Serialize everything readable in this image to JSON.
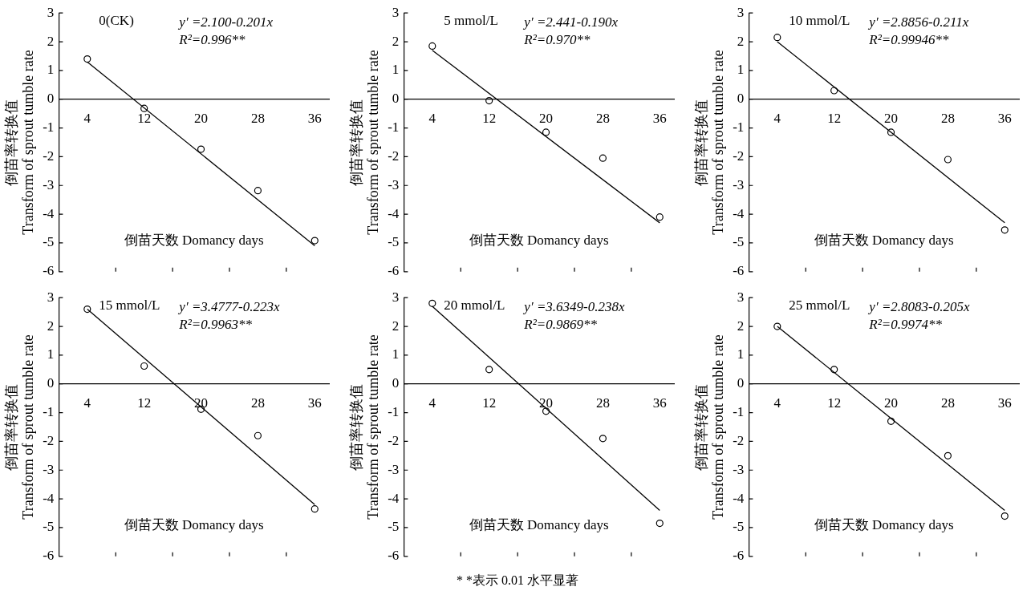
{
  "chart_data": [
    {
      "type": "scatter",
      "xlabel": "倒苗天数 Domancy days",
      "ylabel": "倒苗率转换值\nTransform of sprout tumble rate",
      "xlim": [
        0,
        38
      ],
      "ylim": [
        -6,
        3
      ],
      "xticks": [
        4,
        {
          "value": 8,
          "label": null
        },
        12,
        {
          "value": 16,
          "label": null
        },
        20,
        {
          "value": 24,
          "label": null
        },
        28,
        {
          "value": 32,
          "label": null
        },
        36
      ],
      "yticks": [
        -6,
        -5,
        -4,
        -3,
        -2,
        -1,
        0,
        1,
        2,
        3
      ],
      "grid": false,
      "legend": false,
      "marker": "circle",
      "annotations": [
        "0(CK)",
        "y′ =2.100-0.201x",
        "R²=0.996**"
      ],
      "series": [
        {
          "color": "#000000",
          "x": [
            4,
            12,
            20,
            28,
            36
          ],
          "values": [
            1.4,
            -0.32,
            -1.74,
            -3.18,
            -4.92
          ]
        },
        {
          "type": "line",
          "color": "#000000",
          "marker": "none",
          "x": [
            4,
            36
          ],
          "values": [
            1.3,
            -5.1
          ]
        }
      ]
    },
    {
      "type": "scatter",
      "xlabel": "倒苗天数 Domancy days",
      "ylabel": "倒苗率转换值\nTransform of sprout tumble rate",
      "xlim": [
        0,
        38
      ],
      "ylim": [
        -6,
        3
      ],
      "xticks": [
        4,
        {
          "value": 8,
          "label": null
        },
        12,
        {
          "value": 16,
          "label": null
        },
        20,
        {
          "value": 24,
          "label": null
        },
        28,
        {
          "value": 32,
          "label": null
        },
        36
      ],
      "yticks": [
        -6,
        -5,
        -4,
        -3,
        -2,
        -1,
        0,
        1,
        2,
        3
      ],
      "grid": false,
      "legend": false,
      "marker": "circle",
      "annotations": [
        "5 mmol/L",
        "y′ =2.441-0.190x",
        "R²=0.970**"
      ],
      "series": [
        {
          "color": "#000000",
          "x": [
            4,
            12,
            20,
            28,
            36
          ],
          "values": [
            1.85,
            -0.05,
            -1.15,
            -2.05,
            -4.1
          ]
        },
        {
          "type": "line",
          "color": "#000000",
          "marker": "none",
          "x": [
            4,
            36
          ],
          "values": [
            1.7,
            -4.3
          ]
        }
      ]
    },
    {
      "type": "scatter",
      "xlabel": "倒苗天数 Domancy days",
      "ylabel": "倒苗率转换值\nTransform of sprout tumble rate",
      "xlim": [
        0,
        38
      ],
      "ylim": [
        -6,
        3
      ],
      "xticks": [
        4,
        {
          "value": 8,
          "label": null
        },
        12,
        {
          "value": 16,
          "label": null
        },
        20,
        {
          "value": 24,
          "label": null
        },
        28,
        {
          "value": 32,
          "label": null
        },
        36
      ],
      "yticks": [
        -6,
        -5,
        -4,
        -3,
        -2,
        -1,
        0,
        1,
        2,
        3
      ],
      "grid": false,
      "legend": false,
      "marker": "circle",
      "annotations": [
        "10 mmol/L",
        "y′ =2.8856-0.211x",
        "R²=0.99946**"
      ],
      "series": [
        {
          "color": "#000000",
          "x": [
            4,
            12,
            20,
            28,
            36
          ],
          "values": [
            2.15,
            0.3,
            -1.15,
            -2.1,
            -4.55
          ]
        },
        {
          "type": "line",
          "color": "#000000",
          "marker": "none",
          "x": [
            4,
            36
          ],
          "values": [
            2.0,
            -4.3
          ]
        }
      ]
    },
    {
      "type": "scatter",
      "xlabel": "倒苗天数 Domancy days",
      "ylabel": "倒苗率转换值\nTransform of sprout tumble rate",
      "xlim": [
        0,
        38
      ],
      "ylim": [
        -6,
        3
      ],
      "xticks": [
        4,
        {
          "value": 8,
          "label": null
        },
        12,
        {
          "value": 16,
          "label": null
        },
        20,
        {
          "value": 24,
          "label": null
        },
        28,
        {
          "value": 32,
          "label": null
        },
        36
      ],
      "yticks": [
        -6,
        -5,
        -4,
        -3,
        -2,
        -1,
        0,
        1,
        2,
        3
      ],
      "grid": false,
      "legend": false,
      "marker": "circle",
      "annotations": [
        "15 mmol/L",
        "y′ =3.4777-0.223x",
        "R²=0.9963**"
      ],
      "series": [
        {
          "color": "#000000",
          "x": [
            4,
            12,
            20,
            28,
            36
          ],
          "values": [
            2.6,
            0.62,
            -0.88,
            -1.8,
            -4.35
          ]
        },
        {
          "type": "line",
          "color": "#000000",
          "marker": "none",
          "x": [
            4,
            36
          ],
          "values": [
            2.6,
            -4.2
          ]
        }
      ]
    },
    {
      "type": "scatter",
      "xlabel": "倒苗天数 Domancy days",
      "ylabel": "倒苗率转换值\nTransform of sprout tumble rate",
      "xlim": [
        0,
        38
      ],
      "ylim": [
        -6,
        3
      ],
      "xticks": [
        4,
        {
          "value": 8,
          "label": null
        },
        12,
        {
          "value": 16,
          "label": null
        },
        20,
        {
          "value": 24,
          "label": null
        },
        28,
        {
          "value": 32,
          "label": null
        },
        36
      ],
      "yticks": [
        -6,
        -5,
        -4,
        -3,
        -2,
        -1,
        0,
        1,
        2,
        3
      ],
      "grid": false,
      "legend": false,
      "marker": "circle",
      "annotations": [
        "20 mmol/L",
        "y′ =3.6349-0.238x",
        "R²=0.9869**"
      ],
      "series": [
        {
          "color": "#000000",
          "x": [
            4,
            12,
            20,
            28,
            36
          ],
          "values": [
            2.8,
            0.5,
            -0.95,
            -1.9,
            -4.85
          ]
        },
        {
          "type": "line",
          "color": "#000000",
          "marker": "none",
          "x": [
            4,
            36
          ],
          "values": [
            2.7,
            -4.4
          ]
        }
      ]
    },
    {
      "type": "scatter",
      "xlabel": "倒苗天数 Domancy days",
      "ylabel": "倒苗率转换值\nTransform of sprout tumble rate",
      "xlim": [
        0,
        38
      ],
      "ylim": [
        -6,
        3
      ],
      "xticks": [
        4,
        {
          "value": 8,
          "label": null
        },
        12,
        {
          "value": 16,
          "label": null
        },
        20,
        {
          "value": 24,
          "label": null
        },
        28,
        {
          "value": 32,
          "label": null
        },
        36
      ],
      "yticks": [
        -6,
        -5,
        -4,
        -3,
        -2,
        -1,
        0,
        1,
        2,
        3
      ],
      "grid": false,
      "legend": false,
      "marker": "circle",
      "annotations": [
        "25 mmol/L",
        "y′ =2.8083-0.205x",
        "R²=0.9974**",
        "* *表示 0.01 水平显著"
      ],
      "series": [
        {
          "color": "#000000",
          "x": [
            4,
            12,
            20,
            28,
            36
          ],
          "values": [
            2.0,
            0.5,
            -1.3,
            -2.5,
            -4.6
          ]
        },
        {
          "type": "line",
          "color": "#000000",
          "marker": "none",
          "x": [
            4,
            36
          ],
          "values": [
            2.0,
            -4.4
          ]
        }
      ]
    }
  ]
}
